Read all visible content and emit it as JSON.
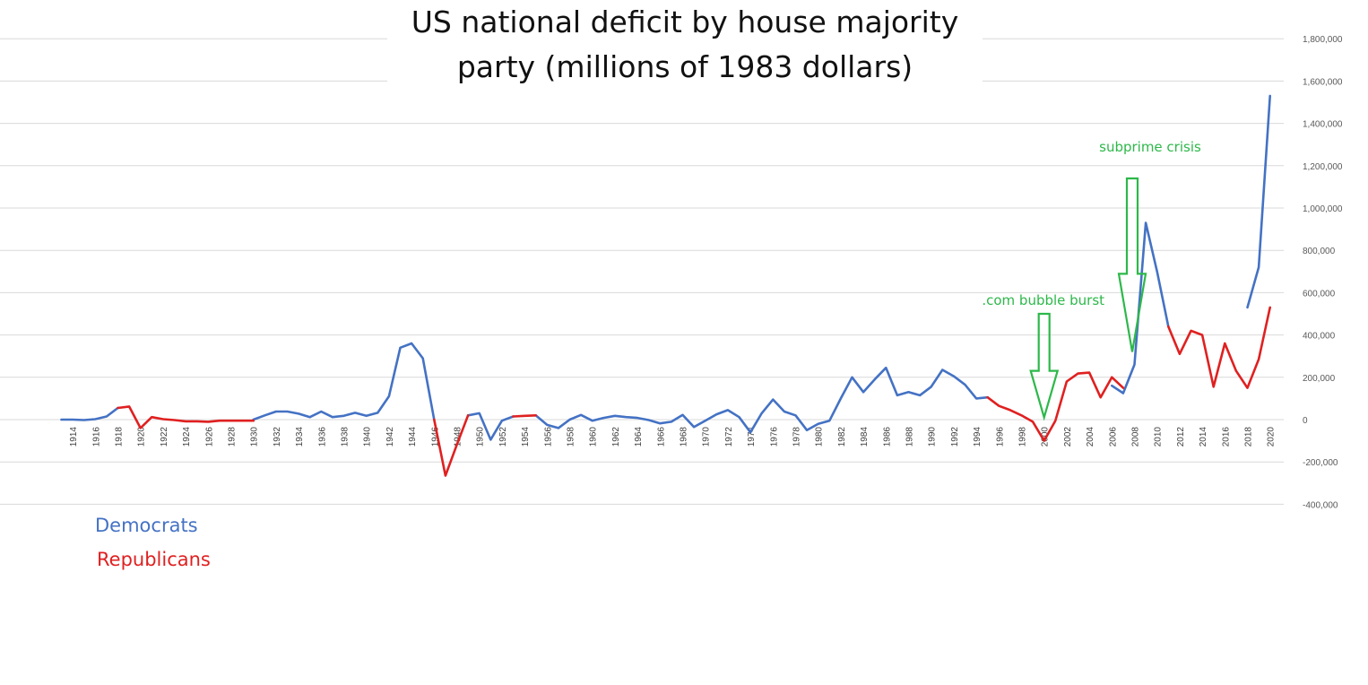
{
  "chart_data": {
    "type": "line",
    "title": "US national deficit by house majority party (millions of 1983 dollars)",
    "xlabel": "",
    "ylabel": "",
    "ylim": [
      -400000,
      1800000
    ],
    "y_ticks": [
      "-400,000",
      "-200,000",
      "0",
      "200,000",
      "400,000",
      "600,000",
      "800,000",
      "1,000,000",
      "1,200,000",
      "1,400,000",
      "1,600,000",
      "1,800,000"
    ],
    "y_tick_values": [
      -400000,
      -200000,
      0,
      200000,
      400000,
      600000,
      800000,
      1000000,
      1200000,
      1400000,
      1600000,
      1800000
    ],
    "x_ticks": [
      "1914",
      "1916",
      "1918",
      "1920",
      "1922",
      "1924",
      "1926",
      "1928",
      "1930",
      "1932",
      "1934",
      "1936",
      "1938",
      "1940",
      "1942",
      "1944",
      "1946",
      "1948",
      "1950",
      "1952",
      "1954",
      "1956",
      "1958",
      "1960",
      "1962",
      "1964",
      "1966",
      "1968",
      "1970",
      "1972",
      "1974",
      "1976",
      "1978",
      "1980",
      "1982",
      "1984",
      "1986",
      "1988",
      "1990",
      "1992",
      "1994",
      "1996",
      "1998",
      "2000",
      "2002",
      "2004",
      "2006",
      "2008",
      "2010",
      "2012",
      "2014",
      "2016",
      "2018",
      "2020"
    ],
    "grid": "horizontal",
    "legend_position": "bottom-left",
    "colors": {
      "democrats": "#4472c4",
      "republicans": "#e02020",
      "annotation": "#2db84a",
      "grid": "#d9d9d9"
    },
    "series": [
      {
        "name": "Democrats",
        "color": "#4472c4",
        "segments": [
          [
            [
              1913,
              0
            ],
            [
              1914,
              0
            ],
            [
              1915,
              -2000
            ],
            [
              1916,
              2000
            ],
            [
              1917,
              15000
            ],
            [
              1918,
              55000
            ]
          ],
          [
            [
              1930,
              0
            ],
            [
              1931,
              20000
            ],
            [
              1932,
              38000
            ],
            [
              1933,
              38000
            ],
            [
              1934,
              28000
            ],
            [
              1935,
              12000
            ],
            [
              1936,
              38000
            ],
            [
              1937,
              12000
            ],
            [
              1938,
              18000
            ],
            [
              1939,
              32000
            ],
            [
              1940,
              18000
            ],
            [
              1941,
              32000
            ],
            [
              1942,
              110000
            ],
            [
              1943,
              340000
            ],
            [
              1944,
              360000
            ],
            [
              1945,
              290000
            ],
            [
              1946,
              0
            ]
          ],
          [
            [
              1949,
              20000
            ],
            [
              1950,
              30000
            ],
            [
              1951,
              -95000
            ],
            [
              1952,
              -5000
            ],
            [
              1953,
              15000
            ]
          ],
          [
            [
              1955,
              20000
            ],
            [
              1956,
              -25000
            ],
            [
              1957,
              -40000
            ],
            [
              1958,
              0
            ],
            [
              1959,
              22000
            ],
            [
              1960,
              -5000
            ],
            [
              1961,
              8000
            ],
            [
              1962,
              18000
            ],
            [
              1963,
              12000
            ],
            [
              1964,
              8000
            ],
            [
              1965,
              -2000
            ],
            [
              1966,
              -18000
            ],
            [
              1967,
              -10000
            ],
            [
              1968,
              22000
            ],
            [
              1969,
              -35000
            ],
            [
              1970,
              -5000
            ],
            [
              1971,
              25000
            ],
            [
              1972,
              45000
            ],
            [
              1973,
              12000
            ],
            [
              1974,
              -60000
            ],
            [
              1975,
              30000
            ],
            [
              1976,
              95000
            ],
            [
              1977,
              38000
            ],
            [
              1978,
              20000
            ],
            [
              1979,
              -50000
            ],
            [
              1980,
              -20000
            ],
            [
              1981,
              -5000
            ],
            [
              1982,
              100000
            ],
            [
              1983,
              200000
            ],
            [
              1984,
              130000
            ],
            [
              1985,
              190000
            ],
            [
              1986,
              245000
            ],
            [
              1987,
              115000
            ],
            [
              1988,
              130000
            ],
            [
              1989,
              115000
            ],
            [
              1990,
              155000
            ],
            [
              1991,
              235000
            ],
            [
              1992,
              205000
            ],
            [
              1993,
              165000
            ],
            [
              1994,
              100000
            ],
            [
              1995,
              105000
            ]
          ],
          [
            [
              2006,
              160000
            ],
            [
              2007,
              125000
            ],
            [
              2008,
              260000
            ],
            [
              2009,
              930000
            ],
            [
              2010,
              700000
            ],
            [
              2011,
              440000
            ]
          ],
          [
            [
              2018,
              530000
            ],
            [
              2019,
              720000
            ],
            [
              2020,
              1530000
            ]
          ]
        ]
      },
      {
        "name": "Republicans",
        "color": "#e02020",
        "segments": [
          [
            [
              1918,
              55000
            ],
            [
              1919,
              62000
            ],
            [
              1920,
              -40000
            ],
            [
              1921,
              12000
            ],
            [
              1922,
              2000
            ],
            [
              1923,
              -2000
            ],
            [
              1924,
              -8000
            ],
            [
              1925,
              -8000
            ],
            [
              1926,
              -10000
            ],
            [
              1927,
              -5000
            ],
            [
              1928,
              -5000
            ],
            [
              1929,
              -5000
            ],
            [
              1930,
              -5000
            ]
          ],
          [
            [
              1946,
              0
            ],
            [
              1947,
              -265000
            ],
            [
              1948,
              -120000
            ],
            [
              1949,
              20000
            ]
          ],
          [
            [
              1953,
              15000
            ],
            [
              1954,
              18000
            ],
            [
              1955,
              20000
            ]
          ],
          [
            [
              1995,
              105000
            ],
            [
              1996,
              65000
            ],
            [
              1997,
              45000
            ],
            [
              1998,
              20000
            ],
            [
              1999,
              -10000
            ],
            [
              2000,
              -100000
            ],
            [
              2001,
              -5000
            ],
            [
              2002,
              180000
            ],
            [
              2003,
              218000
            ],
            [
              2004,
              222000
            ],
            [
              2005,
              105000
            ],
            [
              2006,
              200000
            ],
            [
              2007,
              150000
            ]
          ],
          [
            [
              2011,
              440000
            ],
            [
              2012,
              310000
            ],
            [
              2013,
              420000
            ],
            [
              2014,
              400000
            ],
            [
              2015,
              155000
            ],
            [
              2016,
              360000
            ],
            [
              2017,
              230000
            ],
            [
              2018,
              150000
            ],
            [
              2019,
              285000
            ],
            [
              2020,
              530000
            ]
          ]
        ]
      }
    ],
    "annotations": [
      {
        "text": ".com bubble burst",
        "year": 2000,
        "top_value": 500000,
        "tip_value": 10000
      },
      {
        "text": "subprime crisis",
        "year": 2007.8,
        "top_value": 1140000,
        "tip_value": 320000
      }
    ]
  }
}
